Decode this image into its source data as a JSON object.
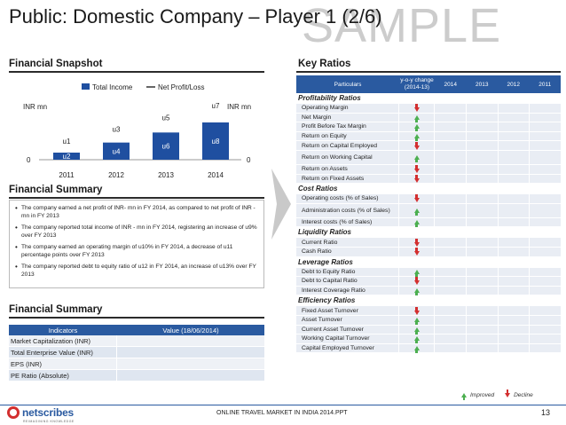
{
  "title": "Public: Domestic Company – Player 1 (2/6)",
  "watermark": "SAMPLE",
  "snapshot": {
    "heading": "Financial Snapshot",
    "legend": {
      "income": "Total Income",
      "profit": "Net Profit/Loss"
    },
    "left_unit": "INR mn",
    "right_unit": "INR mn",
    "y_zero_left": "0",
    "y_zero_right": "0"
  },
  "chart_data": {
    "type": "bar",
    "categories": [
      "2011",
      "2012",
      "2013",
      "2014"
    ],
    "series": [
      {
        "name": "Total Income",
        "values": [
          1,
          2,
          3,
          4
        ],
        "labels": [
          "u2",
          "u4",
          "u6",
          "u8"
        ],
        "color": "#1f4fa0"
      },
      {
        "name": "Net Profit/Loss",
        "values": [
          1,
          2,
          3,
          4
        ],
        "labels": [
          "u1",
          "u3",
          "u5",
          "u7"
        ],
        "color": "#000000"
      }
    ],
    "xlabel": "",
    "ylabel": "INR mn"
  },
  "summary": {
    "heading": "Financial Summary",
    "items": [
      "The company earned a net profit of INR- mn in FY 2014, as compared to net profit of INR - mn in FY 2013",
      "The company reported total income of INR - mn in FY 2014, registering an increase of u9% over FY 2013",
      "The company earned an operating margin of u10% in FY 2014, a decrease of u11 percentage points over FY 2013",
      "The company reported debt to equity ratio of u12 in FY 2014, an increase of u13% over FY 2013"
    ]
  },
  "indicators": {
    "heading": "Financial Summary",
    "col1": "Indicators",
    "col2": "Value (18/06/2014)",
    "rows": [
      "Market Capitalization (INR)",
      "Total Enterprise Value (INR)",
      "EPS (INR)",
      "PE Ratio (Absolute)"
    ]
  },
  "key_ratios": {
    "heading": "Key Ratios",
    "header": {
      "particulars": "Particulars",
      "yoy": "y-o-y change (2014-13)",
      "y1": "2014",
      "y2": "2013",
      "y3": "2012",
      "y4": "2011"
    },
    "groups": [
      {
        "name": "Profitability Ratios",
        "rows": [
          {
            "label": "Operating Margin",
            "dir": "down"
          },
          {
            "label": "Net Margin",
            "dir": "up"
          },
          {
            "label": "Profit Before Tax Margin",
            "dir": "up"
          },
          {
            "label": "Return on Equity",
            "dir": "up"
          },
          {
            "label": "Return on Capital Employed",
            "dir": "down"
          },
          {
            "label": "Return on Working Capital",
            "dir": "up",
            "tall": true
          },
          {
            "label": "Return on Assets",
            "dir": "down"
          },
          {
            "label": "Return on Fixed Assets",
            "dir": "down"
          }
        ]
      },
      {
        "name": "Cost Ratios",
        "rows": [
          {
            "label": "Operating costs (% of Sales)",
            "dir": "down"
          },
          {
            "label": "Administration costs (% of Sales)",
            "dir": "up",
            "tall": true
          },
          {
            "label": "Interest costs (% of Sales)",
            "dir": "up"
          }
        ]
      },
      {
        "name": "Liquidity Ratios",
        "rows": [
          {
            "label": "Current Ratio",
            "dir": "down"
          },
          {
            "label": "Cash Ratio",
            "dir": "down"
          }
        ]
      },
      {
        "name": "Leverage Ratios",
        "rows": [
          {
            "label": "Debt to Equity Ratio",
            "dir": "up"
          },
          {
            "label": "Debt to Capital Ratio",
            "dir": "down"
          },
          {
            "label": "Interest Coverage Ratio",
            "dir": "up"
          }
        ]
      },
      {
        "name": "Efficiency Ratios",
        "rows": [
          {
            "label": "Fixed Asset Turnover",
            "dir": "down"
          },
          {
            "label": "Asset Turnover",
            "dir": "up"
          },
          {
            "label": "Current Asset Turnover",
            "dir": "up"
          },
          {
            "label": "Working Capital Turnover",
            "dir": "up"
          },
          {
            "label": "Capital Employed Turnover",
            "dir": "up"
          }
        ]
      }
    ],
    "legend": {
      "improved": "Improved",
      "decline": "Decline"
    }
  },
  "footer": {
    "logo": "netscribes",
    "tagline": "REIMAGINING KNOWLEDGE",
    "doc": "ONLINE TRAVEL MARKET IN INDIA 2014.PPT",
    "page": "13"
  }
}
